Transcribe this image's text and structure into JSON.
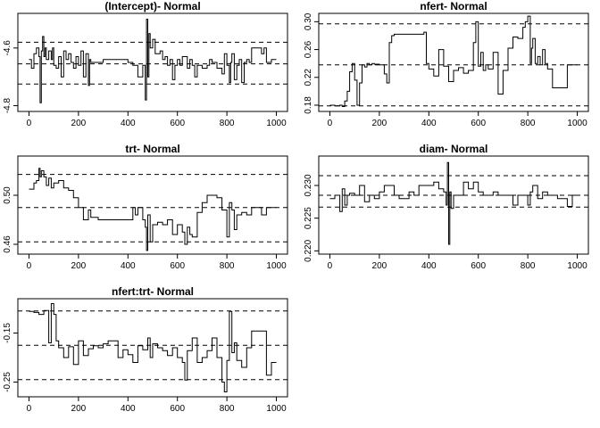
{
  "chart_data": [
    {
      "type": "line",
      "title": "(Intercept)- Normal",
      "xlabel": "",
      "ylabel": "",
      "xlim": [
        -45,
        1045
      ],
      "ylim": [
        -4.82,
        -4.48
      ],
      "xticks": [
        0,
        200,
        400,
        600,
        800,
        1000
      ],
      "yticks": [
        -4.8,
        -4.6
      ],
      "yticklabels": [
        "-4.8",
        "-4.6"
      ],
      "hlines": [
        -4.58,
        -4.655,
        -4.725
      ],
      "grid": false,
      "x": [
        0,
        10,
        20,
        30,
        40,
        45,
        50,
        55,
        60,
        65,
        70,
        80,
        90,
        95,
        100,
        110,
        120,
        130,
        140,
        150,
        160,
        170,
        180,
        190,
        200,
        210,
        220,
        230,
        240,
        245,
        250,
        260,
        280,
        300,
        320,
        340,
        360,
        380,
        400,
        420,
        440,
        460,
        470,
        475,
        480,
        485,
        490,
        500,
        510,
        520,
        530,
        540,
        550,
        560,
        570,
        580,
        590,
        600,
        610,
        620,
        640,
        650,
        660,
        670,
        680,
        700,
        720,
        730,
        740,
        760,
        780,
        790,
        800,
        810,
        815,
        820,
        830,
        840,
        850,
        860,
        870,
        880,
        890,
        900,
        920,
        940,
        950,
        960,
        980,
        1000
      ],
      "y": [
        -4.64,
        -4.67,
        -4.62,
        -4.6,
        -4.63,
        -4.79,
        -4.61,
        -4.56,
        -4.63,
        -4.6,
        -4.64,
        -4.61,
        -4.64,
        -4.6,
        -4.66,
        -4.67,
        -4.63,
        -4.7,
        -4.61,
        -4.64,
        -4.62,
        -4.65,
        -4.67,
        -4.63,
        -4.66,
        -4.61,
        -4.7,
        -4.62,
        -4.73,
        -4.64,
        -4.65,
        -4.65,
        -4.65,
        -4.64,
        -4.64,
        -4.64,
        -4.64,
        -4.64,
        -4.65,
        -4.66,
        -4.7,
        -4.66,
        -4.78,
        -4.5,
        -4.7,
        -4.55,
        -4.6,
        -4.57,
        -4.62,
        -4.62,
        -4.61,
        -4.64,
        -4.63,
        -4.66,
        -4.64,
        -4.71,
        -4.66,
        -4.64,
        -4.66,
        -4.63,
        -4.67,
        -4.64,
        -4.66,
        -4.7,
        -4.66,
        -4.67,
        -4.66,
        -4.64,
        -4.65,
        -4.67,
        -4.69,
        -4.62,
        -4.66,
        -4.72,
        -4.65,
        -4.62,
        -4.71,
        -4.66,
        -4.64,
        -4.72,
        -4.65,
        -4.64,
        -4.65,
        -4.6,
        -4.6,
        -4.62,
        -4.6,
        -4.65,
        -4.64,
        -4.64
      ]
    },
    {
      "type": "line",
      "title": "nfert- Normal",
      "xlabel": "",
      "ylabel": "",
      "xlim": [
        -45,
        1045
      ],
      "ylim": [
        0.171,
        0.312
      ],
      "xticks": [
        0,
        200,
        400,
        600,
        800,
        1000
      ],
      "yticks": [
        0.18,
        0.22,
        0.26,
        0.3
      ],
      "yticklabels": [
        "0.18",
        "0.22",
        "0.26",
        "0.30"
      ],
      "hlines": [
        0.297,
        0.238,
        0.179
      ],
      "grid": false,
      "x": [
        0,
        20,
        40,
        50,
        60,
        70,
        80,
        90,
        100,
        110,
        120,
        130,
        140,
        150,
        160,
        170,
        180,
        200,
        220,
        230,
        240,
        250,
        260,
        280,
        300,
        320,
        340,
        360,
        380,
        390,
        400,
        420,
        440,
        460,
        480,
        500,
        520,
        540,
        560,
        580,
        590,
        600,
        610,
        620,
        630,
        640,
        660,
        680,
        700,
        720,
        740,
        760,
        780,
        790,
        800,
        810,
        815,
        820,
        830,
        840,
        850,
        860,
        870,
        880,
        900,
        920,
        940,
        960,
        980,
        1000
      ],
      "y": [
        0.18,
        0.179,
        0.18,
        0.178,
        0.186,
        0.2,
        0.228,
        0.24,
        0.216,
        0.18,
        0.212,
        0.238,
        0.235,
        0.24,
        0.238,
        0.24,
        0.239,
        0.238,
        0.225,
        0.212,
        0.27,
        0.28,
        0.282,
        0.282,
        0.282,
        0.282,
        0.282,
        0.282,
        0.285,
        0.24,
        0.232,
        0.222,
        0.26,
        0.236,
        0.214,
        0.23,
        0.234,
        0.226,
        0.23,
        0.27,
        0.3,
        0.236,
        0.256,
        0.23,
        0.238,
        0.232,
        0.256,
        0.196,
        0.23,
        0.262,
        0.278,
        0.276,
        0.292,
        0.3,
        0.308,
        0.24,
        0.262,
        0.276,
        0.24,
        0.25,
        0.238,
        0.26,
        0.24,
        0.232,
        0.205,
        0.205,
        0.205,
        0.238,
        0.238,
        0.238
      ]
    },
    {
      "type": "line",
      "title": "trt- Normal",
      "xlabel": "",
      "ylabel": "",
      "xlim": [
        -45,
        1045
      ],
      "ylim": [
        0.452,
        0.532
      ],
      "xticks": [
        0,
        200,
        400,
        600,
        800,
        1000
      ],
      "yticks": [
        0.46,
        0.5
      ],
      "yticklabels": [
        "0.46",
        "0.50"
      ],
      "hlines": [
        0.517,
        0.49,
        0.462
      ],
      "grid": false,
      "x": [
        0,
        20,
        30,
        40,
        45,
        50,
        60,
        70,
        80,
        90,
        100,
        120,
        140,
        160,
        180,
        200,
        220,
        240,
        250,
        260,
        280,
        300,
        320,
        340,
        360,
        380,
        400,
        420,
        430,
        440,
        460,
        470,
        475,
        480,
        490,
        500,
        520,
        540,
        560,
        580,
        600,
        620,
        630,
        640,
        650,
        660,
        680,
        700,
        720,
        740,
        760,
        780,
        800,
        810,
        820,
        830,
        840,
        860,
        880,
        900,
        920,
        940,
        960,
        980,
        1000
      ],
      "y": [
        0.505,
        0.51,
        0.512,
        0.522,
        0.515,
        0.52,
        0.515,
        0.508,
        0.514,
        0.506,
        0.51,
        0.512,
        0.506,
        0.504,
        0.498,
        0.49,
        0.48,
        0.488,
        0.482,
        0.482,
        0.48,
        0.48,
        0.48,
        0.48,
        0.48,
        0.48,
        0.48,
        0.49,
        0.484,
        0.49,
        0.48,
        0.474,
        0.455,
        0.484,
        0.462,
        0.476,
        0.478,
        0.476,
        0.48,
        0.468,
        0.476,
        0.47,
        0.46,
        0.474,
        0.468,
        0.466,
        0.486,
        0.494,
        0.5,
        0.5,
        0.498,
        0.488,
        0.466,
        0.494,
        0.488,
        0.472,
        0.484,
        0.486,
        0.484,
        0.49,
        0.49,
        0.484,
        0.49,
        0.49,
        0.49
      ]
    },
    {
      "type": "line",
      "title": "diam- Normal",
      "xlabel": "",
      "ylabel": "",
      "xlim": [
        -45,
        1045
      ],
      "ylim": [
        0.2195,
        0.2345
      ],
      "xticks": [
        0,
        200,
        400,
        600,
        800,
        1000
      ],
      "yticks": [
        0.22,
        0.225,
        0.23
      ],
      "yticklabels": [
        "0.220",
        "0.225",
        "0.230"
      ],
      "hlines": [
        0.2315,
        0.2285,
        0.2267
      ],
      "grid": false,
      "x": [
        0,
        20,
        40,
        50,
        60,
        70,
        80,
        100,
        120,
        140,
        160,
        180,
        200,
        220,
        240,
        260,
        280,
        300,
        320,
        340,
        360,
        380,
        400,
        420,
        440,
        460,
        470,
        475,
        480,
        485,
        490,
        500,
        520,
        540,
        560,
        580,
        600,
        620,
        640,
        660,
        680,
        700,
        720,
        740,
        760,
        780,
        800,
        810,
        820,
        840,
        860,
        880,
        900,
        920,
        940,
        960,
        980,
        1000
      ],
      "y": [
        0.228,
        0.2285,
        0.226,
        0.2295,
        0.227,
        0.2285,
        0.2288,
        0.2285,
        0.23,
        0.2275,
        0.2285,
        0.228,
        0.229,
        0.23,
        0.23,
        0.2285,
        0.228,
        0.228,
        0.229,
        0.2285,
        0.23,
        0.23,
        0.23,
        0.2305,
        0.2295,
        0.229,
        0.227,
        0.2335,
        0.221,
        0.229,
        0.2265,
        0.2285,
        0.2285,
        0.2305,
        0.2295,
        0.2305,
        0.229,
        0.2285,
        0.2285,
        0.229,
        0.2285,
        0.2285,
        0.2285,
        0.227,
        0.2285,
        0.2285,
        0.227,
        0.229,
        0.23,
        0.228,
        0.229,
        0.2285,
        0.2285,
        0.228,
        0.228,
        0.2268,
        0.2285,
        0.2285
      ]
    },
    {
      "type": "line",
      "title": "nfert:trt- Normal",
      "xlabel": "",
      "ylabel": "",
      "xlim": [
        -45,
        1045
      ],
      "ylim": [
        -0.28,
        -0.08
      ],
      "xticks": [
        0,
        200,
        400,
        600,
        800,
        1000
      ],
      "yticks": [
        -0.25,
        -0.15
      ],
      "yticklabels": [
        "-0.25",
        "-0.15"
      ],
      "hlines": [
        -0.105,
        -0.175,
        -0.245
      ],
      "grid": false,
      "x": [
        0,
        20,
        40,
        60,
        80,
        90,
        100,
        110,
        120,
        140,
        160,
        180,
        200,
        220,
        240,
        260,
        280,
        300,
        320,
        340,
        360,
        380,
        400,
        420,
        440,
        460,
        480,
        490,
        500,
        520,
        540,
        560,
        580,
        600,
        620,
        630,
        640,
        660,
        680,
        700,
        720,
        740,
        760,
        780,
        790,
        800,
        810,
        820,
        830,
        840,
        860,
        880,
        900,
        920,
        940,
        960,
        980,
        1000
      ],
      "y": [
        -0.106,
        -0.108,
        -0.112,
        -0.104,
        -0.17,
        -0.09,
        -0.112,
        -0.166,
        -0.18,
        -0.2,
        -0.178,
        -0.214,
        -0.166,
        -0.196,
        -0.182,
        -0.176,
        -0.18,
        -0.172,
        -0.166,
        -0.166,
        -0.2,
        -0.184,
        -0.194,
        -0.21,
        -0.176,
        -0.184,
        -0.16,
        -0.2,
        -0.172,
        -0.18,
        -0.186,
        -0.196,
        -0.18,
        -0.2,
        -0.21,
        -0.246,
        -0.186,
        -0.16,
        -0.21,
        -0.2,
        -0.186,
        -0.16,
        -0.2,
        -0.25,
        -0.27,
        -0.206,
        -0.106,
        -0.19,
        -0.17,
        -0.206,
        -0.22,
        -0.18,
        -0.146,
        -0.146,
        -0.146,
        -0.236,
        -0.21,
        -0.21
      ]
    }
  ]
}
